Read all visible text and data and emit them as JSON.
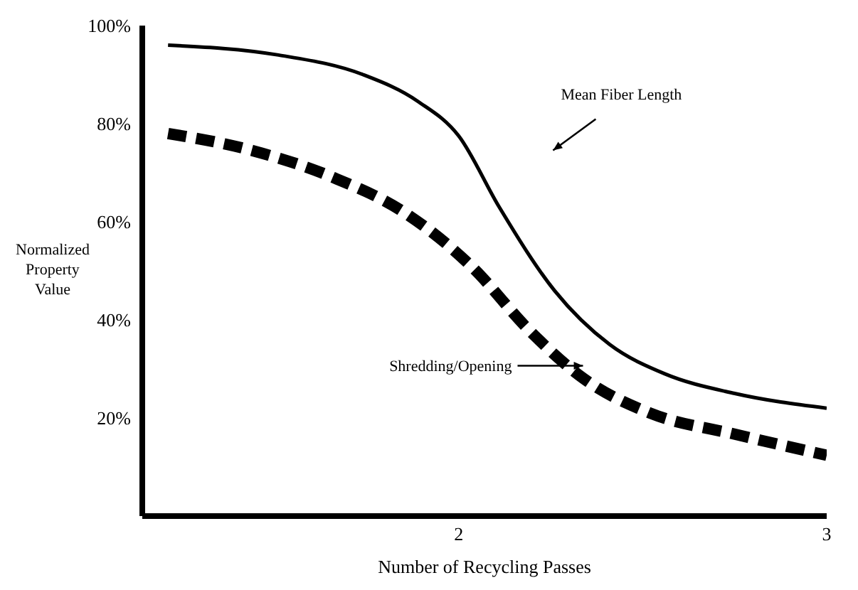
{
  "chart_data": {
    "type": "line",
    "xlabel": "Number of Recycling Passes",
    "ylabel": "Normalized Property Value",
    "xlim": [
      1.14,
      3
    ],
    "xticks": [
      2,
      3
    ],
    "ylim": [
      0,
      100
    ],
    "yticks": [
      {
        "value": 20,
        "label": "20%"
      },
      {
        "value": 40,
        "label": "40%"
      },
      {
        "value": 60,
        "label": "60%"
      },
      {
        "value": 80,
        "label": "80%"
      },
      {
        "value": 100,
        "label": "100%"
      }
    ],
    "marker": "none",
    "series": [
      {
        "color": "#000000",
        "line_style": "solid",
        "x": [
          1.21,
          1.51,
          1.74,
          1.89,
          2.0,
          2.11,
          2.26,
          2.41,
          2.56,
          2.75,
          3.0
        ],
        "values": [
          96,
          94,
          90,
          84.5,
          77.5,
          63,
          46,
          35,
          29,
          25,
          22
        ]
      },
      {
        "color": "#000000",
        "line_style": "dashed",
        "x": [
          1.21,
          1.44,
          1.66,
          1.85,
          2.04,
          2.19,
          2.34,
          2.52,
          2.75,
          3.0
        ],
        "values": [
          78,
          74.5,
          69,
          62,
          50.5,
          38,
          28,
          21,
          16.7,
          12.4
        ]
      }
    ],
    "annotations": [
      "Mean Fiber Length",
      "Shredding/Opening"
    ]
  }
}
